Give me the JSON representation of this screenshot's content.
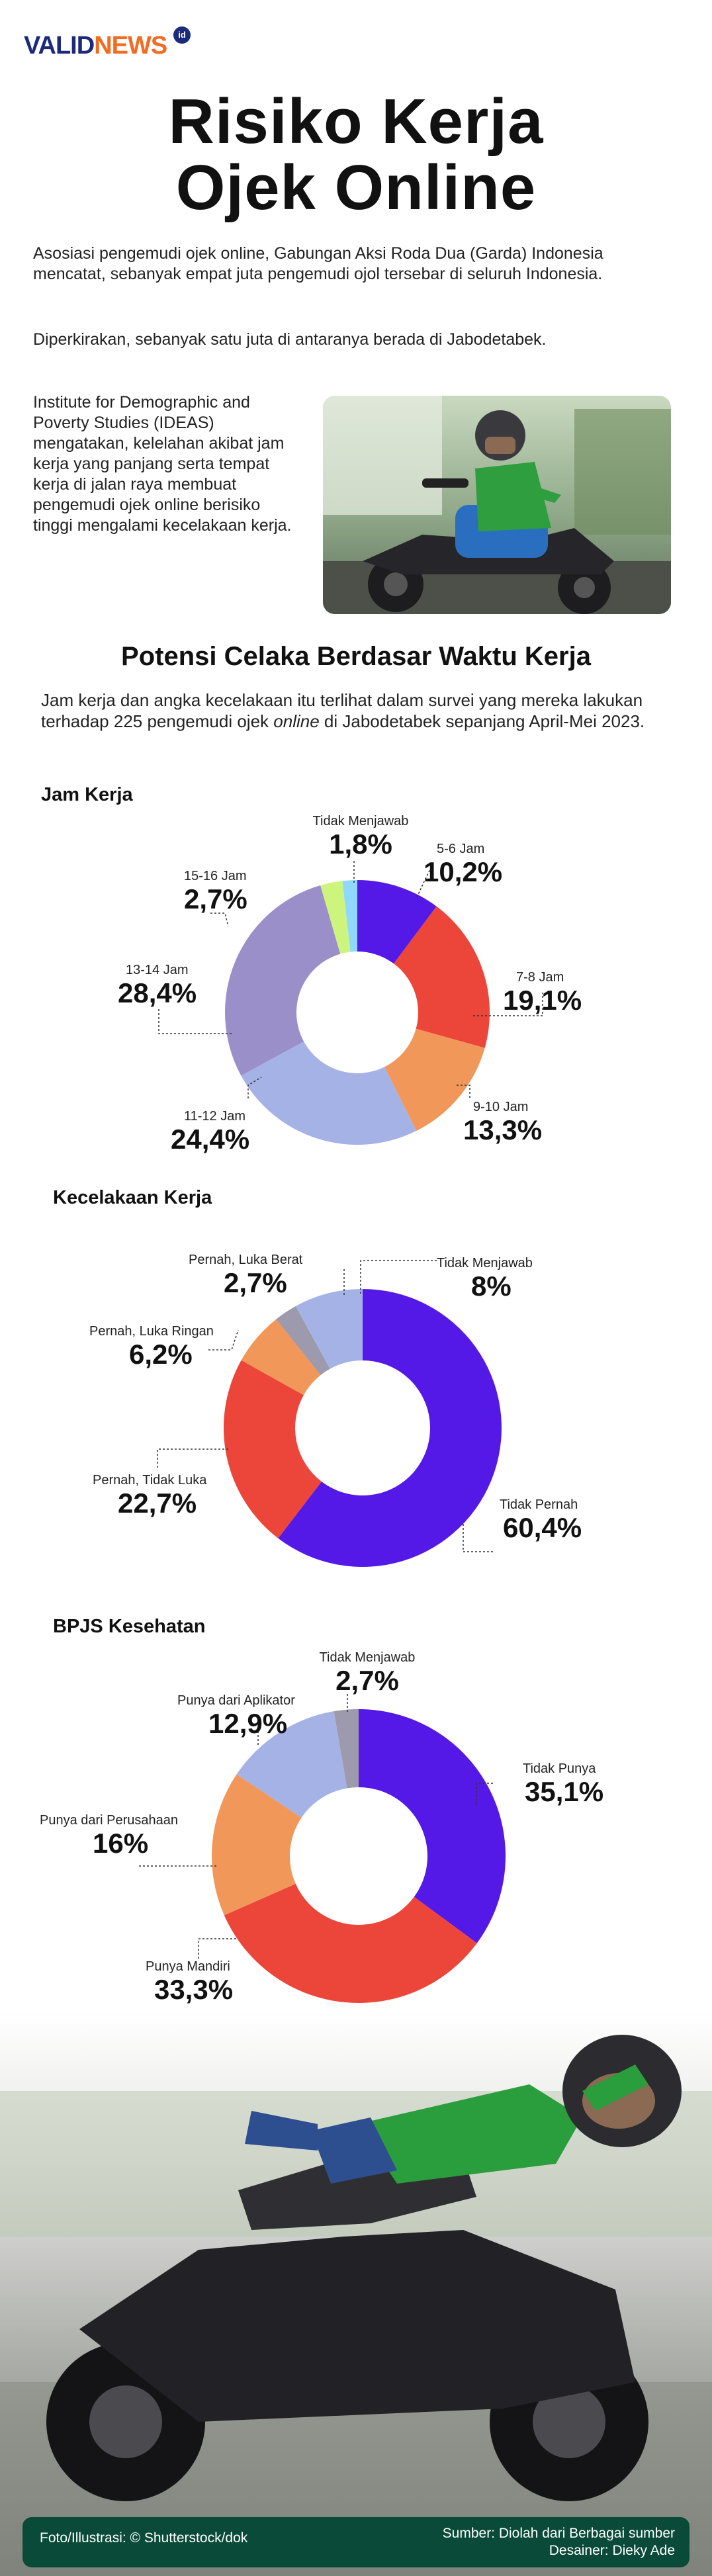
{
  "brand": {
    "name_part1": "VALID",
    "name_part2": "NEWS",
    "badge": "id"
  },
  "title": {
    "line1": "Risiko Kerja",
    "line2": "Ojek Online"
  },
  "intro_paragraphs": [
    "Asosiasi pengemudi ojek online, Gabungan Aksi Roda Dua (Garda) Indonesia mencatat, sebanyak empat juta pengemudi ojol tersebar di seluruh Indonesia.",
    "Diperkirakan, sebanyak satu juta di antaranya berada di Jabodetabek."
  ],
  "ideas_text": "Institute for Demographic and Poverty Studies (IDEAS) mengatakan, kelelahan akibat jam kerja yang panjang serta tempat kerja di jalan raya membuat pengemudi ojek online berisiko tinggi mengalami kecelakaan kerja.",
  "subtitle": "Potensi Celaka Berdasar Waktu Kerja",
  "survey_intro": {
    "before": "Jam kerja dan angka kecelakaan itu terlihat dalam survei yang mereka lakukan terhadap 225 pengemudi ojek ",
    "emphasis": "online",
    "after": " di Jabodetabek sepanjang April-Mei 2023."
  },
  "colors": {
    "purple": "#5419e6",
    "red": "#ec453a",
    "orange": "#f2975a",
    "periwinkle": "#a5b2e6",
    "lavender": "#9a8fc9",
    "lime": "#cdf57e",
    "skyblue": "#8fd8ff",
    "grey": "#9c9aac",
    "footer_bg": "#0a4a38",
    "brand_blue": "#1b2a7a",
    "brand_orange": "#f26b21"
  },
  "chart_data": [
    {
      "type": "pie",
      "title": "Jam Kerja",
      "categories": [
        "5-6 Jam",
        "7-8 Jam",
        "9-10 Jam",
        "11-12 Jam",
        "13-14 Jam",
        "15-16 Jam",
        "Tidak Menjawab"
      ],
      "values": [
        10.2,
        19.1,
        13.3,
        24.4,
        28.4,
        2.7,
        1.8
      ],
      "display": [
        "10,2%",
        "19,1%",
        "13,3%",
        "24,4%",
        "28,4%",
        "2,7%",
        "1,8%"
      ],
      "colors": [
        "#5419e6",
        "#ec453a",
        "#f2975a",
        "#a5b2e6",
        "#9a8fc9",
        "#cdf57e",
        "#8fd8ff"
      ]
    },
    {
      "type": "pie",
      "title": "Kecelakaan Kerja",
      "categories": [
        "Tidak Pernah",
        "Pernah, Tidak Luka",
        "Pernah, Luka Ringan",
        "Pernah, Luka Berat",
        "Tidak Menjawab"
      ],
      "values": [
        60.4,
        22.7,
        6.2,
        2.7,
        8
      ],
      "display": [
        "60,4%",
        "22,7%",
        "6,2%",
        "2,7%",
        "8%"
      ],
      "colors": [
        "#5419e6",
        "#ec453a",
        "#f2975a",
        "#9c9aac",
        "#a5b2e6"
      ]
    },
    {
      "type": "pie",
      "title": "BPJS Kesehatan",
      "categories": [
        "Tidak Punya",
        "Punya Mandiri",
        "Punya dari Perusahaan",
        "Punya dari Aplikator",
        "Tidak Menjawab"
      ],
      "values": [
        35.1,
        33.3,
        16,
        12.9,
        2.7
      ],
      "display": [
        "35,1%",
        "33,3%",
        "16%",
        "12,9%",
        "2,7%"
      ],
      "colors": [
        "#5419e6",
        "#ec453a",
        "#f2975a",
        "#a5b2e6",
        "#9c9aac"
      ]
    }
  ],
  "footer": {
    "credit": "Foto/Illustrasi: © Shutterstock/dok",
    "source": "Sumber: Diolah dari Berbagai sumber",
    "designer": "Desainer: Dieky Ade"
  }
}
